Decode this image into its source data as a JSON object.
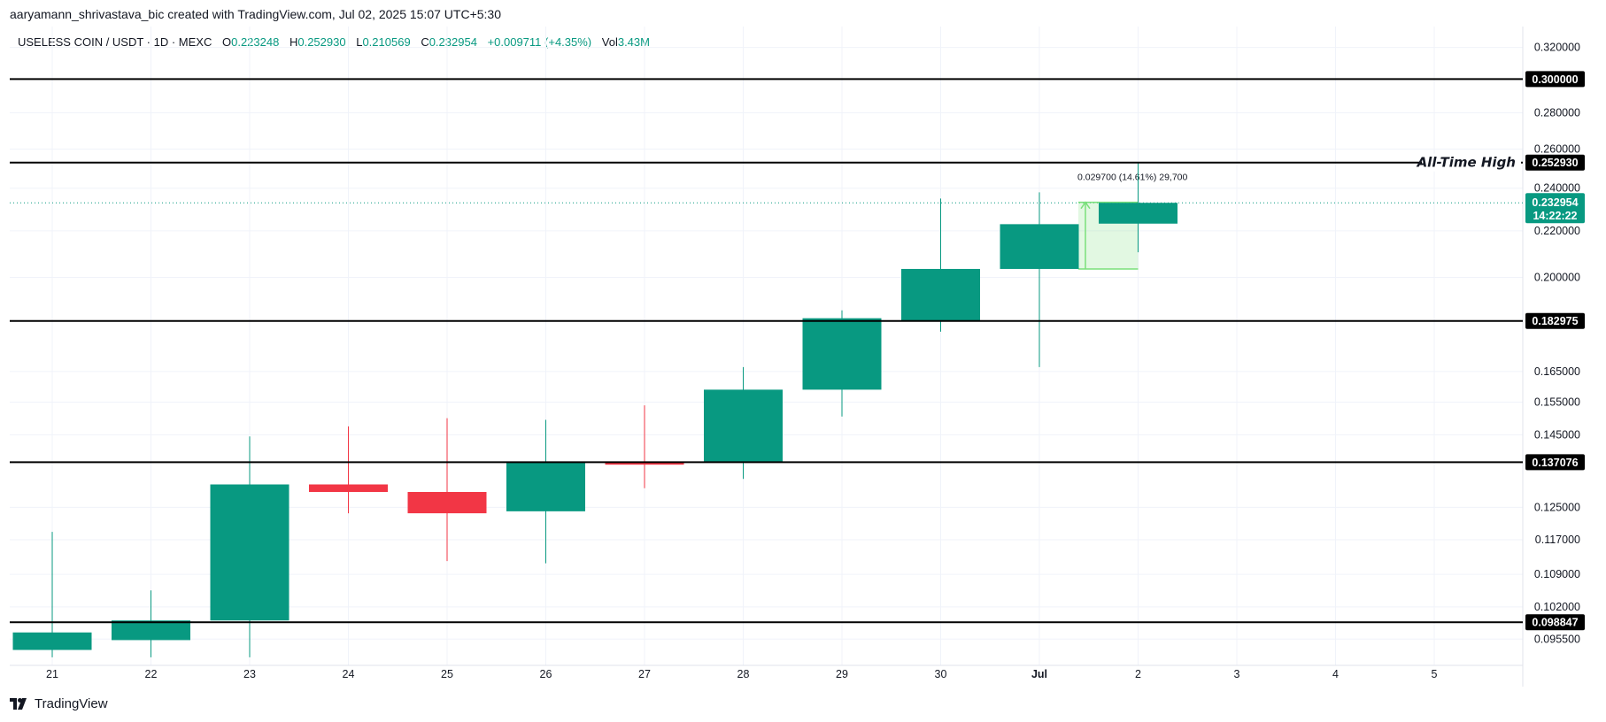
{
  "header": {
    "credit": "aaryamann_shrivastava_bic created with TradingView.com, Jul 02, 2025 15:07 UTC+5:30"
  },
  "legend": {
    "symbol": "USELESS COIN / USDT · 1D · MEXC",
    "open_key": "O",
    "open": "0.223248",
    "high_key": "H",
    "high": "0.252930",
    "low_key": "L",
    "low": "0.210569",
    "close_key": "C",
    "close": "0.232954",
    "change": "+0.009711 (+4.35%)",
    "vol_key": "Vol",
    "vol": "3.43M"
  },
  "brand": {
    "name": "TradingView"
  },
  "colors": {
    "up": "#089981",
    "down": "#f23645",
    "line": "#000000",
    "measure": "#7ae07a",
    "grid": "#f0f3fa"
  },
  "chart_data": {
    "type": "candlestick",
    "y_scale": "log",
    "ylim": [
      0.0905,
      0.334
    ],
    "x_ticks": [
      "21",
      "22",
      "23",
      "24",
      "25",
      "26",
      "27",
      "28",
      "29",
      "30",
      "Jul",
      "2",
      "3",
      "4",
      "5"
    ],
    "y_ticks": [
      "0.320000",
      "0.280000",
      "0.260000",
      "0.240000",
      "0.220000",
      "0.200000",
      "0.165000",
      "0.155000",
      "0.145000",
      "0.125000",
      "0.117000",
      "0.109000",
      "0.102000",
      "0.095500"
    ],
    "candles": [
      {
        "x": "21",
        "open": 0.0934,
        "high": 0.1189,
        "low": 0.092,
        "close": 0.0968
      },
      {
        "x": "22",
        "open": 0.0953,
        "high": 0.1055,
        "low": 0.092,
        "close": 0.0992
      },
      {
        "x": "23",
        "open": 0.0992,
        "high": 0.1445,
        "low": 0.092,
        "close": 0.131
      },
      {
        "x": "24",
        "open": 0.131,
        "high": 0.1475,
        "low": 0.1235,
        "close": 0.129
      },
      {
        "x": "25",
        "open": 0.129,
        "high": 0.15,
        "low": 0.112,
        "close": 0.1235
      },
      {
        "x": "26",
        "open": 0.124,
        "high": 0.1495,
        "low": 0.1115,
        "close": 0.137
      },
      {
        "x": "27",
        "open": 0.137,
        "high": 0.154,
        "low": 0.13,
        "close": 0.1364
      },
      {
        "x": "28",
        "open": 0.137,
        "high": 0.1665,
        "low": 0.1325,
        "close": 0.159
      },
      {
        "x": "29",
        "open": 0.159,
        "high": 0.187,
        "low": 0.1505,
        "close": 0.184
      },
      {
        "x": "30",
        "open": 0.183,
        "high": 0.235,
        "low": 0.179,
        "close": 0.2035
      },
      {
        "x": "Jul",
        "open": 0.2035,
        "high": 0.238,
        "low": 0.1665,
        "close": 0.223
      },
      {
        "x": "2",
        "open": 0.223248,
        "high": 0.25293,
        "low": 0.210569,
        "close": 0.232954
      }
    ],
    "horizontal_levels": [
      {
        "value": 0.3,
        "label": "0.300000"
      },
      {
        "value": 0.25293,
        "label": "0.252930",
        "annotation": "All-Time High"
      },
      {
        "value": 0.182975,
        "label": "0.182975"
      },
      {
        "value": 0.137076,
        "label": "0.137076"
      },
      {
        "value": 0.098847,
        "label": "0.098847"
      }
    ],
    "last_price": {
      "value": 0.232954,
      "label": "0.232954",
      "countdown": "14:22:22"
    },
    "measure": {
      "from": 0.2035,
      "to": 0.2332,
      "label": "0.029700 (14.61%) 29,700"
    }
  }
}
